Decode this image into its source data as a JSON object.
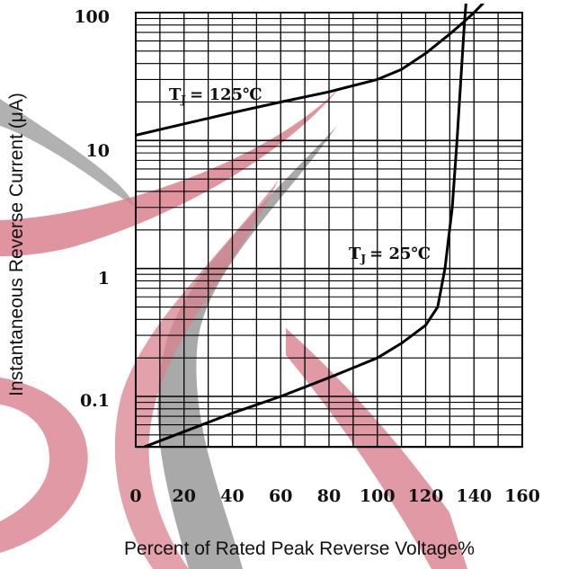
{
  "chart_data": {
    "type": "line",
    "xlabel": "Percent of Rated Peak Reverse Voltage%",
    "ylabel": "Instantaneous Reverse Current (μA)",
    "xlim": [
      0,
      160
    ],
    "ylim": [
      0.03,
      100
    ],
    "y_scale": "log",
    "grid": true,
    "x_ticks": [
      "0",
      "20",
      "40",
      "60",
      "80",
      "100",
      "120",
      "140",
      "160"
    ],
    "y_ticks": [
      "100",
      "10",
      "1",
      "0.1"
    ],
    "series": [
      {
        "name": "T_J = 125℃",
        "x": [
          0,
          20,
          40,
          60,
          80,
          100,
          110,
          120,
          130,
          135,
          140,
          145
        ],
        "y": [
          11,
          13.5,
          16.5,
          20,
          24,
          30,
          36,
          48,
          68,
          82,
          100,
          125
        ]
      },
      {
        "name": "T_J = 25℃",
        "x": [
          0,
          20,
          40,
          60,
          80,
          100,
          110,
          120,
          125,
          128,
          131,
          133,
          135,
          136,
          137
        ],
        "y": [
          0.038,
          0.053,
          0.074,
          0.1,
          0.14,
          0.2,
          0.26,
          0.36,
          0.5,
          1.0,
          3.0,
          10,
          40,
          80,
          140
        ]
      }
    ],
    "annotations": [
      {
        "label": "T",
        "sub": "J",
        "rest": "= 125℃",
        "series": 0
      },
      {
        "label": "T",
        "sub": "J",
        "rest": "= 25℃",
        "series": 1
      }
    ],
    "colors": {
      "curve": "#000000",
      "grid": "#000000",
      "watermark_red": "#d9818f",
      "watermark_gray": "#9a9a9a"
    }
  }
}
